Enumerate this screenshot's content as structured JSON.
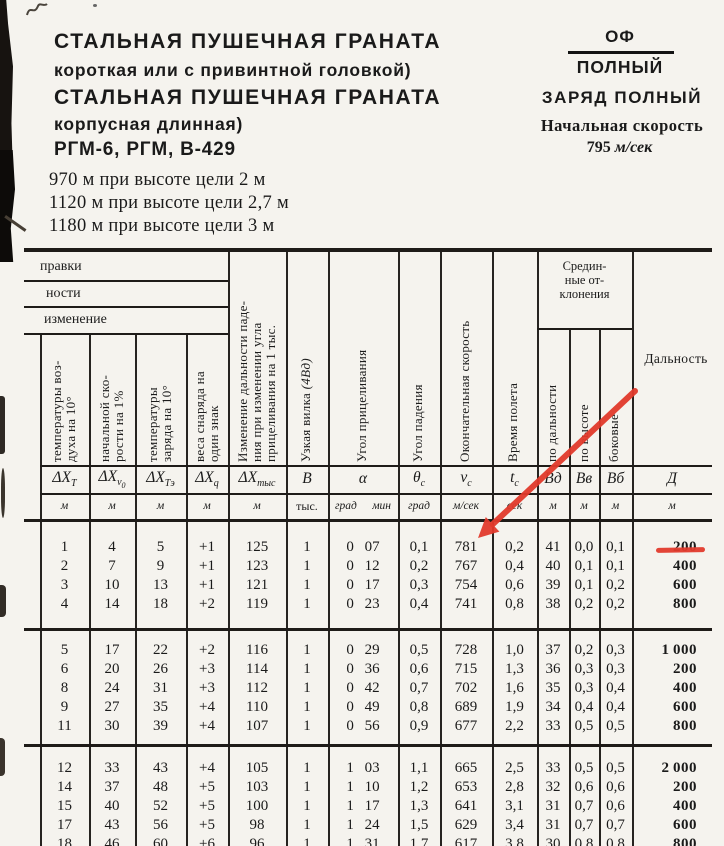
{
  "page": {
    "paper": "#f5f3ee",
    "ink": "#1a1a1a"
  },
  "annotations": {
    "color": "#e23a2c",
    "arrow_target_value": "781",
    "underlined_value": "200"
  },
  "header": {
    "left": {
      "line1": "СТАЛЬНАЯ ПУШЕЧНАЯ ГРАНАТА",
      "line2": "короткая или с привинтной головкой)",
      "line3": "СТАЛЬНАЯ ПУШЕЧНАЯ ГРАНАТА",
      "line4": "корпусная длинная)",
      "line5": "РГМ-6, РГМ, В-429",
      "ranges": [
        "970 м при высоте цели 2 м",
        "1120 м при высоте цели 2,7 м",
        "1180 м при высоте цели 3 м"
      ]
    },
    "right": {
      "shell_type": "ОФ",
      "charge_short": "ПОЛНЫЙ",
      "charge_full": "ЗАРЯД ПОЛНЫЙ",
      "mv_label": "Начальная скорость",
      "mv_value": "795",
      "mv_unit": "м/сек"
    }
  },
  "table": {
    "stub": [
      "правки",
      "ности",
      "изменение"
    ],
    "deviations_header": "Средин-\nные от-\nклонения",
    "range_label": "Дальность",
    "columns": [
      {
        "label": "температуры воз-\nдуха на 10°",
        "sym": "ΔX",
        "sub": "Т",
        "unit": "м"
      },
      {
        "label": "начальной ско-\nрости на 1%",
        "sym": "ΔX",
        "sub": "v",
        "subsub": "0",
        "unit": "м"
      },
      {
        "label": "температуры\nзаряда на 10°",
        "sym": "ΔX",
        "sub": "Тэ",
        "unit": "м"
      },
      {
        "label": "веса снаряда на\nодин знак",
        "sym": "ΔX",
        "sub": "q",
        "unit": "м"
      },
      {
        "label": "Изменение дальности паде-\nния при изменении угла\nприцеливания на 1 тыс.",
        "sym": "ΔX",
        "sub": "тыс",
        "unit": "м"
      },
      {
        "label": "Узкая вилка ",
        "note": "(4Вд)",
        "sym": "В",
        "unit": "тыс."
      },
      {
        "label": "Угол прицеливания",
        "sym": "α",
        "unit": "град мин"
      },
      {
        "label": "Угол падения",
        "sym": "θ",
        "sub": "с",
        "unit": "град"
      },
      {
        "label": "Окончательная скорость",
        "sym": "v",
        "sub": "с",
        "unit": "м/сек"
      },
      {
        "label": "Время полета",
        "sym": "t",
        "sub": "с",
        "unit": "сек"
      },
      {
        "label": "по дальности",
        "sym": "Вд",
        "unit": "м"
      },
      {
        "label": "по высоте",
        "sym": "Вв",
        "unit": "м"
      },
      {
        "label": "боковые",
        "sym": "Вб",
        "unit": "м"
      },
      {
        "label": "",
        "sym": "Д",
        "unit": "м"
      }
    ],
    "groups": [
      {
        "rows": [
          [
            "1",
            "4",
            "5",
            "+1",
            "125",
            "1",
            "0 07",
            "0,1",
            "781",
            "0,2",
            "41",
            "0,0",
            "0,1",
            "200"
          ],
          [
            "2",
            "7",
            "9",
            "+1",
            "123",
            "1",
            "0 12",
            "0,2",
            "767",
            "0,4",
            "40",
            "0,1",
            "0,1",
            "400"
          ],
          [
            "3",
            "10",
            "13",
            "+1",
            "121",
            "1",
            "0 17",
            "0,3",
            "754",
            "0,6",
            "39",
            "0,1",
            "0,2",
            "600"
          ],
          [
            "4",
            "14",
            "18",
            "+2",
            "119",
            "1",
            "0 23",
            "0,4",
            "741",
            "0,8",
            "38",
            "0,2",
            "0,2",
            "800"
          ]
        ]
      },
      {
        "rows": [
          [
            "5",
            "17",
            "22",
            "+2",
            "116",
            "1",
            "0 29",
            "0,5",
            "728",
            "1,0",
            "37",
            "0,2",
            "0,3",
            "1 000"
          ],
          [
            "6",
            "20",
            "26",
            "+3",
            "114",
            "1",
            "0 36",
            "0,6",
            "715",
            "1,3",
            "36",
            "0,3",
            "0,3",
            "200"
          ],
          [
            "8",
            "24",
            "31",
            "+3",
            "112",
            "1",
            "0 42",
            "0,7",
            "702",
            "1,6",
            "35",
            "0,3",
            "0,4",
            "400"
          ],
          [
            "9",
            "27",
            "35",
            "+4",
            "110",
            "1",
            "0 49",
            "0,8",
            "689",
            "1,9",
            "34",
            "0,4",
            "0,4",
            "600"
          ],
          [
            "11",
            "30",
            "39",
            "+4",
            "107",
            "1",
            "0 56",
            "0,9",
            "677",
            "2,2",
            "33",
            "0,5",
            "0,5",
            "800"
          ]
        ]
      },
      {
        "rows": [
          [
            "12",
            "33",
            "43",
            "+4",
            "105",
            "1",
            "1 03",
            "1,1",
            "665",
            "2,5",
            "33",
            "0,5",
            "0,5",
            "2 000"
          ],
          [
            "14",
            "37",
            "48",
            "+5",
            "103",
            "1",
            "1 10",
            "1,2",
            "653",
            "2,8",
            "32",
            "0,6",
            "0,6",
            "200"
          ],
          [
            "15",
            "40",
            "52",
            "+5",
            "100",
            "1",
            "1 17",
            "1,3",
            "641",
            "3,1",
            "31",
            "0,7",
            "0,6",
            "400"
          ],
          [
            "17",
            "43",
            "56",
            "+5",
            "98",
            "1",
            "1 24",
            "1,5",
            "629",
            "3,4",
            "31",
            "0,7",
            "0,7",
            "600"
          ],
          [
            "18",
            "46",
            "60",
            "+6",
            "96",
            "1",
            "1 31",
            "1,7",
            "617",
            "3,8",
            "30",
            "0,8",
            "0,8",
            "800"
          ]
        ]
      }
    ]
  }
}
